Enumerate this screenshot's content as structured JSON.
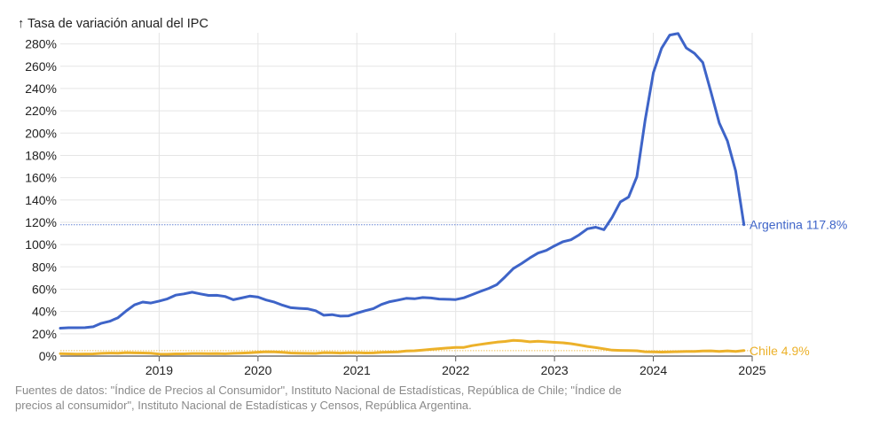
{
  "chart_data": {
    "type": "line",
    "y_axis_label": "↑ Tasa de variación anual del IPC",
    "y_unit": "%",
    "ylim": [
      0,
      290
    ],
    "y_ticks": [
      0,
      20,
      40,
      60,
      80,
      100,
      120,
      140,
      160,
      180,
      200,
      220,
      240,
      260,
      280
    ],
    "x_ticks": [
      "2019",
      "2020",
      "2021",
      "2022",
      "2023",
      "2024",
      "2025"
    ],
    "xlim": [
      "2018-01",
      "2025-01"
    ],
    "grid": true,
    "series": [
      {
        "name": "Argentina",
        "end_label": "Argentina 117.8%",
        "color": "#3e64c8",
        "reference_line": true,
        "x": [
          "2018-01",
          "2018-02",
          "2018-03",
          "2018-04",
          "2018-05",
          "2018-06",
          "2018-07",
          "2018-08",
          "2018-09",
          "2018-10",
          "2018-11",
          "2018-12",
          "2019-01",
          "2019-02",
          "2019-03",
          "2019-04",
          "2019-05",
          "2019-06",
          "2019-07",
          "2019-08",
          "2019-09",
          "2019-10",
          "2019-11",
          "2019-12",
          "2020-01",
          "2020-02",
          "2020-03",
          "2020-04",
          "2020-05",
          "2020-06",
          "2020-07",
          "2020-08",
          "2020-09",
          "2020-10",
          "2020-11",
          "2020-12",
          "2021-01",
          "2021-02",
          "2021-03",
          "2021-04",
          "2021-05",
          "2021-06",
          "2021-07",
          "2021-08",
          "2021-09",
          "2021-10",
          "2021-11",
          "2021-12",
          "2022-01",
          "2022-02",
          "2022-03",
          "2022-04",
          "2022-05",
          "2022-06",
          "2022-07",
          "2022-08",
          "2022-09",
          "2022-10",
          "2022-11",
          "2022-12",
          "2023-01",
          "2023-02",
          "2023-03",
          "2023-04",
          "2023-05",
          "2023-06",
          "2023-07",
          "2023-08",
          "2023-09",
          "2023-10",
          "2023-11",
          "2023-12",
          "2024-01",
          "2024-02",
          "2024-03",
          "2024-04",
          "2024-05",
          "2024-06",
          "2024-07",
          "2024-08",
          "2024-09",
          "2024-10",
          "2024-11",
          "2024-12"
        ],
        "values": [
          25.0,
          25.4,
          25.4,
          25.5,
          26.3,
          29.5,
          31.2,
          34.4,
          40.5,
          45.9,
          48.5,
          47.6,
          49.3,
          51.3,
          54.7,
          55.8,
          57.3,
          55.8,
          54.4,
          54.5,
          53.5,
          50.5,
          52.1,
          53.8,
          52.9,
          50.3,
          48.4,
          45.6,
          43.4,
          42.8,
          42.4,
          40.7,
          36.6,
          37.2,
          35.8,
          36.1,
          38.5,
          40.7,
          42.6,
          46.3,
          48.8,
          50.2,
          51.8,
          51.4,
          52.5,
          52.1,
          51.2,
          50.9,
          50.7,
          52.3,
          55.1,
          58.0,
          60.7,
          64.0,
          71.0,
          78.5,
          83.0,
          88.0,
          92.4,
          94.8,
          98.8,
          102.5,
          104.3,
          108.8,
          114.2,
          115.6,
          113.4,
          124.4,
          138.3,
          142.7,
          160.9,
          211.4,
          254.2,
          276.2,
          287.9,
          289.4,
          276.4,
          271.5,
          263.4,
          236.7,
          209.0,
          193.0,
          166.0,
          117.8
        ]
      },
      {
        "name": "Chile",
        "end_label": "Chile 4.9%",
        "color": "#ecb12a",
        "reference_line": true,
        "x": [
          "2018-01",
          "2018-02",
          "2018-03",
          "2018-04",
          "2018-05",
          "2018-06",
          "2018-07",
          "2018-08",
          "2018-09",
          "2018-10",
          "2018-11",
          "2018-12",
          "2019-01",
          "2019-02",
          "2019-03",
          "2019-04",
          "2019-05",
          "2019-06",
          "2019-07",
          "2019-08",
          "2019-09",
          "2019-10",
          "2019-11",
          "2019-12",
          "2020-01",
          "2020-02",
          "2020-03",
          "2020-04",
          "2020-05",
          "2020-06",
          "2020-07",
          "2020-08",
          "2020-09",
          "2020-10",
          "2020-11",
          "2020-12",
          "2021-01",
          "2021-02",
          "2021-03",
          "2021-04",
          "2021-05",
          "2021-06",
          "2021-07",
          "2021-08",
          "2021-09",
          "2021-10",
          "2021-11",
          "2021-12",
          "2022-01",
          "2022-02",
          "2022-03",
          "2022-04",
          "2022-05",
          "2022-06",
          "2022-07",
          "2022-08",
          "2022-09",
          "2022-10",
          "2022-11",
          "2022-12",
          "2023-01",
          "2023-02",
          "2023-03",
          "2023-04",
          "2023-05",
          "2023-06",
          "2023-07",
          "2023-08",
          "2023-09",
          "2023-10",
          "2023-11",
          "2023-12",
          "2024-01",
          "2024-02",
          "2024-03",
          "2024-04",
          "2024-05",
          "2024-06",
          "2024-07",
          "2024-08",
          "2024-09",
          "2024-10",
          "2024-11",
          "2024-12"
        ],
        "values": [
          2.2,
          2.0,
          1.8,
          1.9,
          2.0,
          2.5,
          2.7,
          2.6,
          3.1,
          2.9,
          2.8,
          2.6,
          1.8,
          1.7,
          2.0,
          2.0,
          2.3,
          2.3,
          2.2,
          2.3,
          2.1,
          2.5,
          2.7,
          3.0,
          3.5,
          3.9,
          3.7,
          3.4,
          2.8,
          2.6,
          2.5,
          2.4,
          3.1,
          3.0,
          2.7,
          3.0,
          3.1,
          2.8,
          2.9,
          3.3,
          3.6,
          3.8,
          4.5,
          4.8,
          5.3,
          6.0,
          6.7,
          7.2,
          7.7,
          7.8,
          9.4,
          10.5,
          11.5,
          12.5,
          13.1,
          14.1,
          13.7,
          12.8,
          13.3,
          12.8,
          12.3,
          11.9,
          11.1,
          9.9,
          8.7,
          7.6,
          6.5,
          5.3,
          5.1,
          5.0,
          4.8,
          3.9,
          3.8,
          3.6,
          3.7,
          4.0,
          4.1,
          4.2,
          4.6,
          4.7,
          4.1,
          4.7,
          4.2,
          4.9
        ]
      }
    ]
  },
  "source_text": "Fuentes de datos: \"Índice de Precios al Consumidor\", Instituto Nacional de Estadísticas, República de Chile; \"Índice de precios al consumidor\", Instituto Nacional de Estadísticas y Censos, República Argentina."
}
